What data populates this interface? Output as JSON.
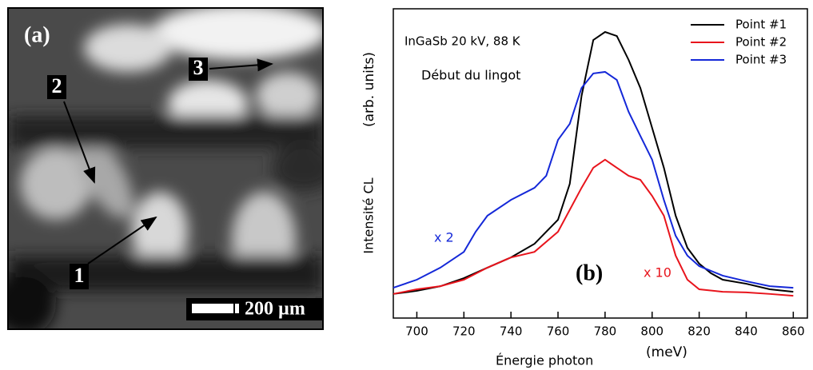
{
  "image": {
    "label": "(a)",
    "markers": [
      "1",
      "2",
      "3"
    ],
    "scale": "200 µm"
  },
  "chart_data": {
    "type": "line",
    "title": "InGaSb 20 kV, 88 K",
    "subtitle": "Début du lingot",
    "annotations": [
      "x 2",
      "x 10",
      "(b)"
    ],
    "xlabel": "Énergie photon",
    "xunit": "(meV)",
    "ylabel": "Intensité CL",
    "yunit": "(arb. units)",
    "xlim": [
      690,
      866
    ],
    "ylim": [
      0,
      100
    ],
    "xticks": [
      700,
      720,
      740,
      760,
      780,
      800,
      820,
      840,
      860
    ],
    "legend": "upper right",
    "series": [
      {
        "name": "Point #1",
        "color": "#000000",
        "x": [
          690,
          700,
          710,
          720,
          730,
          740,
          750,
          760,
          765,
          770,
          775,
          780,
          785,
          790,
          795,
          800,
          805,
          810,
          815,
          820,
          825,
          830,
          840,
          850,
          860
        ],
        "values": [
          7.8,
          8.8,
          10.3,
          12.9,
          16.3,
          19.6,
          24,
          31.8,
          43.4,
          71.8,
          89.9,
          92.5,
          91.2,
          83.5,
          74.4,
          61.5,
          48.6,
          33.1,
          22.7,
          17.6,
          14.5,
          12.4,
          11.1,
          9.3,
          8.5
        ]
      },
      {
        "name": "Point #2",
        "color": "#e8141c",
        "x": [
          690,
          700,
          710,
          720,
          730,
          740,
          750,
          760,
          770,
          775,
          780,
          785,
          790,
          795,
          800,
          805,
          810,
          815,
          820,
          830,
          840,
          850,
          860
        ],
        "values": [
          7.8,
          9.3,
          10.3,
          12.4,
          16.3,
          19.6,
          21.4,
          27.9,
          42.1,
          48.6,
          51.2,
          48.6,
          46,
          44.7,
          39.5,
          33.1,
          20.2,
          12.4,
          9.3,
          8.5,
          8.3,
          7.8,
          7.2
        ]
      },
      {
        "name": "Point #3",
        "color": "#1428d8",
        "x": [
          690,
          700,
          710,
          720,
          725,
          730,
          740,
          750,
          755,
          760,
          765,
          770,
          775,
          780,
          785,
          790,
          795,
          800,
          805,
          810,
          815,
          820,
          830,
          840,
          850,
          860
        ],
        "values": [
          9.8,
          12.4,
          16.3,
          21.4,
          27.9,
          33.1,
          38.2,
          42.1,
          46,
          57.6,
          62.8,
          74.4,
          79.1,
          79.6,
          77,
          66.7,
          58.9,
          51.2,
          38.2,
          26.6,
          20.2,
          16.8,
          13.7,
          11.9,
          10.3,
          9.8
        ]
      }
    ]
  }
}
